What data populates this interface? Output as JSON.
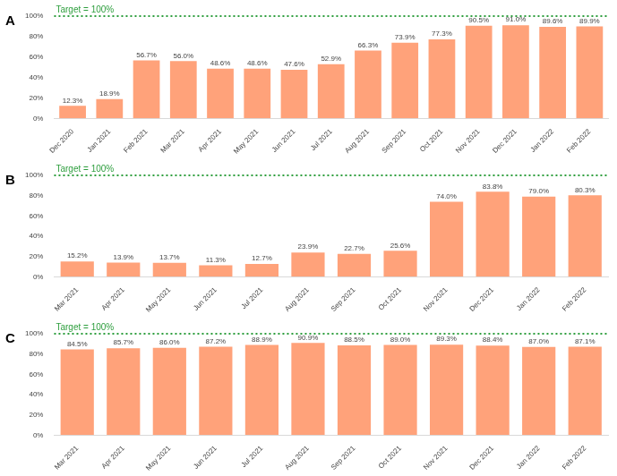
{
  "chart_data": [
    {
      "type": "bar",
      "title": "A",
      "categories": [
        "Dec 2020",
        "Jan 2021",
        "Feb 2021",
        "Mar 2021",
        "Apr 2021",
        "May 2021",
        "Jun 2021",
        "Jul 2021",
        "Aug 2021",
        "Sep 2021",
        "Oct 2021",
        "Nov 2021",
        "Dec 2021",
        "Jan 2022",
        "Feb 2022"
      ],
      "values": [
        12.3,
        18.9,
        56.7,
        56.0,
        48.6,
        48.6,
        47.6,
        52.9,
        66.3,
        73.9,
        77.3,
        90.5,
        91.0,
        89.6,
        89.9
      ],
      "value_labels": [
        "12.3%",
        "18.9%",
        "56.7%",
        "56.0%",
        "48.6%",
        "48.6%",
        "47.6%",
        "52.9%",
        "66.3%",
        "73.9%",
        "77.3%",
        "90.5%",
        "91.0%",
        "89.6%",
        "89.9%"
      ],
      "color": "#ffa27a",
      "ylim": [
        0,
        100
      ],
      "yticks": [
        {
          "value": 0,
          "label": "0%"
        },
        {
          "value": 20,
          "label": "20%"
        },
        {
          "value": 40,
          "label": "40%"
        },
        {
          "value": 60,
          "label": "60%"
        },
        {
          "value": 80,
          "label": "80%"
        },
        {
          "value": 100,
          "label": "100%"
        }
      ],
      "grid": false,
      "data_labels": true,
      "annotations": [
        {
          "text": "Target = 100%",
          "value": 100,
          "color": "#2e9e3e",
          "line_style": "dotted"
        }
      ]
    },
    {
      "type": "bar",
      "title": "B",
      "categories": [
        "Mar 2021",
        "Apr 2021",
        "May 2021",
        "Jun 2021",
        "Jul 2021",
        "Aug 2021",
        "Sep 2021",
        "Oct 2021",
        "Nov 2021",
        "Dec 2021",
        "Jan 2022",
        "Feb 2022"
      ],
      "values": [
        15.2,
        13.9,
        13.7,
        11.3,
        12.7,
        23.9,
        22.7,
        25.6,
        74.0,
        83.8,
        79.0,
        80.3
      ],
      "value_labels": [
        "15.2%",
        "13.9%",
        "13.7%",
        "11.3%",
        "12.7%",
        "23.9%",
        "22.7%",
        "25.6%",
        "74.0%",
        "83.8%",
        "79.0%",
        "80.3%"
      ],
      "color": "#ffa27a",
      "ylim": [
        0,
        100
      ],
      "yticks": [
        {
          "value": 0,
          "label": "0%"
        },
        {
          "value": 20,
          "label": "20%"
        },
        {
          "value": 40,
          "label": "40%"
        },
        {
          "value": 60,
          "label": "60%"
        },
        {
          "value": 80,
          "label": "80%"
        },
        {
          "value": 100,
          "label": "100%"
        }
      ],
      "grid": false,
      "data_labels": true,
      "annotations": [
        {
          "text": "Target = 100%",
          "value": 100,
          "color": "#2e9e3e",
          "line_style": "dotted"
        }
      ]
    },
    {
      "type": "bar",
      "title": "C",
      "categories": [
        "Mar 2021",
        "Apr 2021",
        "May 2021",
        "Jun 2021",
        "Jul 2021",
        "Aug 2021",
        "Sep 2021",
        "Oct 2021",
        "Nov 2021",
        "Dec 2021",
        "Jan 2022",
        "Feb 2022"
      ],
      "values": [
        84.5,
        85.7,
        86.0,
        87.2,
        88.9,
        90.9,
        88.5,
        89.0,
        89.3,
        88.4,
        87.0,
        87.1
      ],
      "value_labels": [
        "84.5%",
        "85.7%",
        "86.0%",
        "87.2%",
        "88.9%",
        "90.9%",
        "88.5%",
        "89.0%",
        "89.3%",
        "88.4%",
        "87.0%",
        "87.1%"
      ],
      "color": "#ffa27a",
      "ylim": [
        0,
        100
      ],
      "yticks": [
        {
          "value": 0,
          "label": "0%"
        },
        {
          "value": 20,
          "label": "20%"
        },
        {
          "value": 40,
          "label": "40%"
        },
        {
          "value": 60,
          "label": "60%"
        },
        {
          "value": 80,
          "label": "80%"
        },
        {
          "value": 100,
          "label": "100%"
        }
      ],
      "grid": false,
      "data_labels": true,
      "annotations": [
        {
          "text": "Target = 100%",
          "value": 100,
          "color": "#2e9e3e",
          "line_style": "dotted"
        }
      ]
    }
  ]
}
